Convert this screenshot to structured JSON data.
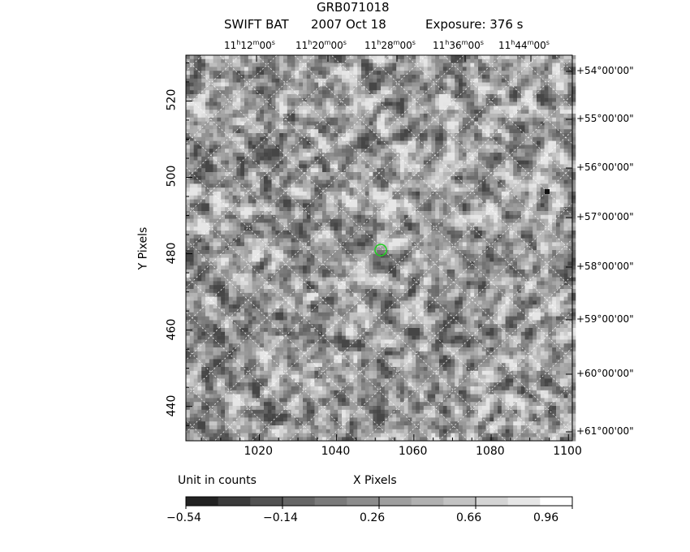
{
  "header": {
    "title": "GRB071018",
    "instrument": "SWIFT BAT",
    "date": "2007 Oct 18",
    "exposure": "Exposure: 376 s"
  },
  "axes": {
    "ylabel": "Y Pixels",
    "xlabel": "X Pixels",
    "x_ticks": [
      "1020",
      "1040",
      "1060",
      "1080",
      "1100"
    ],
    "y_ticks": [
      "520",
      "500",
      "480",
      "460",
      "440"
    ]
  },
  "ra_labels": [
    {
      "h": "11",
      "hs": "h",
      "m": "12",
      "ms": "m",
      "s": "00",
      "ss": "s"
    },
    {
      "h": "11",
      "hs": "h",
      "m": "20",
      "ms": "m",
      "s": "00",
      "ss": "s"
    },
    {
      "h": "11",
      "hs": "h",
      "m": "28",
      "ms": "m",
      "s": "00",
      "ss": "s"
    },
    {
      "h": "11",
      "hs": "h",
      "m": "36",
      "ms": "m",
      "s": "00",
      "ss": "s"
    },
    {
      "h": "11",
      "hs": "h",
      "m": "44",
      "ms": "m",
      "s": "00",
      "ss": "s"
    }
  ],
  "dec_labels": [
    "+54°00'00\"",
    "+55°00'00\"",
    "+56°00'00\"",
    "+57°00'00\"",
    "+58°00'00\"",
    "+59°00'00\"",
    "+60°00'00\"",
    "+61°00'00\""
  ],
  "colorbar": {
    "unit_label": "Unit in counts",
    "tick_labels": [
      "−0.54",
      "−0.14",
      "0.26",
      "0.66",
      "0.96"
    ],
    "colors": [
      "#222222",
      "#3b3b3b",
      "#525252",
      "#666666",
      "#7a7a7a",
      "#8c8c8c",
      "#9e9e9e",
      "#b0b0b0",
      "#c2c2c2",
      "#d4d4d4",
      "#e6e6e6",
      "#ffffff"
    ]
  },
  "marker": {
    "color": "#22cc22",
    "name": "burst-position-circle"
  },
  "chart_data": {
    "type": "heatmap",
    "title": "GRB071018",
    "xlabel": "X Pixels",
    "ylabel": "Y Pixels",
    "xlim": [
      1001,
      1101
    ],
    "ylim": [
      431,
      532
    ],
    "marker_pixel": [
      1052,
      481
    ],
    "colorbar_range": [
      -0.54,
      0.96
    ]
  }
}
